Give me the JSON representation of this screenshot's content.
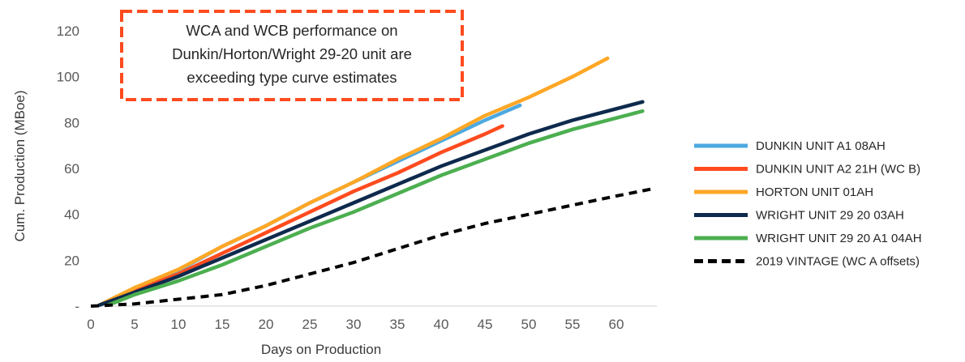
{
  "chart_data": {
    "type": "line",
    "title": "",
    "xlabel": "Days on Production",
    "ylabel": "Cum. Production (MBoe)",
    "xlim": [
      0,
      65
    ],
    "ylim": [
      0,
      120
    ],
    "x_ticks": [
      0,
      5,
      10,
      15,
      20,
      25,
      30,
      35,
      40,
      45,
      50,
      55,
      60
    ],
    "x_tick_labels": [
      "0",
      "5",
      "10",
      "15",
      "20",
      "25",
      "30",
      "35",
      "40",
      "45",
      "50",
      "55",
      "60"
    ],
    "y_ticks": [
      0,
      20,
      40,
      60,
      80,
      100,
      120
    ],
    "y_tick_labels": [
      "-",
      "20",
      "40",
      "60",
      "80",
      "100",
      "120"
    ],
    "grid": false,
    "legend_position": "right",
    "series": [
      {
        "name": "DUNKIN UNIT A1 08AH",
        "color": "#4DA9E0",
        "dash": false,
        "x": [
          2,
          5,
          10,
          15,
          20,
          25,
          30,
          35,
          40,
          45,
          49
        ],
        "y": [
          0.5,
          8,
          15.5,
          26,
          35,
          45,
          54,
          63,
          72,
          81,
          87.5
        ]
      },
      {
        "name": "DUNKIN UNIT A2 21H (WC B)",
        "color": "#FF4B1F",
        "dash": false,
        "x": [
          2,
          5,
          10,
          15,
          20,
          25,
          30,
          35,
          40,
          45,
          47
        ],
        "y": [
          0.5,
          7,
          14,
          23,
          32,
          41,
          50,
          58,
          67,
          75,
          78.5
        ]
      },
      {
        "name": "HORTON UNIT 01AH",
        "color": "#FFA726",
        "dash": false,
        "x": [
          1,
          5,
          10,
          15,
          20,
          25,
          30,
          35,
          40,
          45,
          50,
          55,
          59
        ],
        "y": [
          0.5,
          8,
          16,
          26,
          35,
          45,
          54,
          64,
          73,
          83,
          91,
          100,
          108
        ]
      },
      {
        "name": "WRIGHT UNIT 29 20 03AH",
        "color": "#0E2A4D",
        "dash": false,
        "x": [
          1,
          5,
          10,
          15,
          20,
          25,
          30,
          35,
          40,
          45,
          50,
          55,
          60,
          63
        ],
        "y": [
          0.5,
          6,
          13,
          21,
          29,
          37,
          45,
          53,
          61,
          68,
          75,
          81,
          86,
          89
        ]
      },
      {
        "name": "WRIGHT UNIT 29 20 A1 04AH",
        "color": "#4CAF50",
        "dash": false,
        "x": [
          2,
          5,
          10,
          15,
          20,
          25,
          30,
          35,
          40,
          45,
          50,
          55,
          60,
          63
        ],
        "y": [
          0.5,
          5,
          11,
          18,
          26,
          34,
          41,
          49,
          57,
          64,
          71,
          77,
          82,
          85
        ]
      },
      {
        "name": "2019 VINTAGE (WC A offsets)",
        "color": "#000000",
        "dash": true,
        "x": [
          0,
          5,
          10,
          15,
          20,
          25,
          30,
          35,
          40,
          45,
          50,
          55,
          60,
          64
        ],
        "y": [
          0,
          1,
          3,
          5,
          9,
          14,
          19,
          25,
          31,
          36,
          40,
          44,
          48,
          51
        ]
      }
    ],
    "annotations": [
      {
        "lines": [
          "WCA and WCB performance on",
          "Dunkin/Horton/Wright  29-20 unit are",
          "exceeding type curve estimates"
        ],
        "border_color": "#FF4B1F"
      }
    ]
  }
}
